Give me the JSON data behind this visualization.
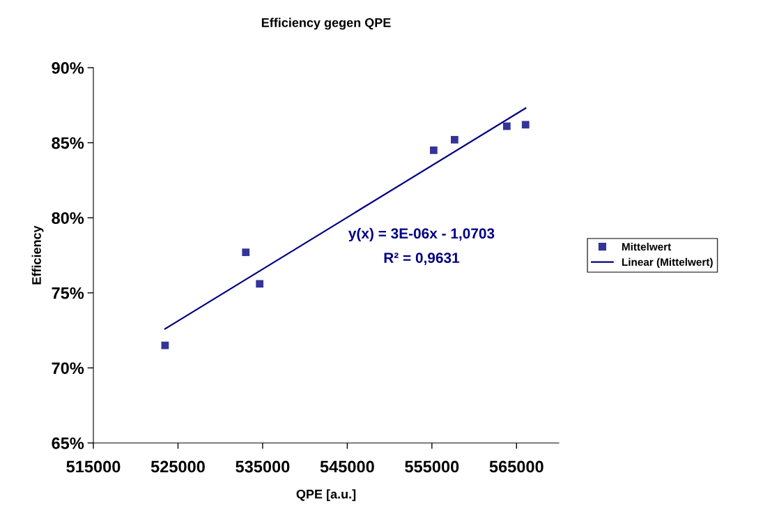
{
  "chart_data": {
    "type": "scatter",
    "title": "Efficiency gegen QPE",
    "xlabel": "QPE [a.u.]",
    "ylabel": "Efficiency",
    "series": [
      {
        "name": "Mittelwert",
        "color": "#333399",
        "marker": "square",
        "x": [
          523470,
          533010,
          534650,
          555210,
          557680,
          563850,
          566070
        ],
        "values": [
          71.5,
          77.7,
          75.6,
          84.5,
          85.2,
          86.1,
          86.2
        ]
      },
      {
        "name": "Linear (Mittelwert)",
        "type": "line",
        "color": "#000080",
        "line_style": "solid",
        "marker": "none",
        "x": [
          523470,
          566070
        ],
        "values": [
          72.6,
          87.3
        ]
      }
    ],
    "annotations": [
      "y(x) = 3E-06x - 1,0703",
      "R² = 0,9631"
    ],
    "xlim": [
      515000,
      570000
    ],
    "xticks": [
      515000,
      525000,
      535000,
      545000,
      555000,
      565000
    ],
    "ylim": [
      65,
      90
    ],
    "yticks": [
      {
        "value": 65,
        "label": "65%"
      },
      {
        "value": 70,
        "label": "70%"
      },
      {
        "value": 75,
        "label": "75%"
      },
      {
        "value": 80,
        "label": "80%"
      },
      {
        "value": 85,
        "label": "85%"
      },
      {
        "value": 90,
        "label": "90%"
      }
    ],
    "grid": false,
    "legend": "right"
  }
}
